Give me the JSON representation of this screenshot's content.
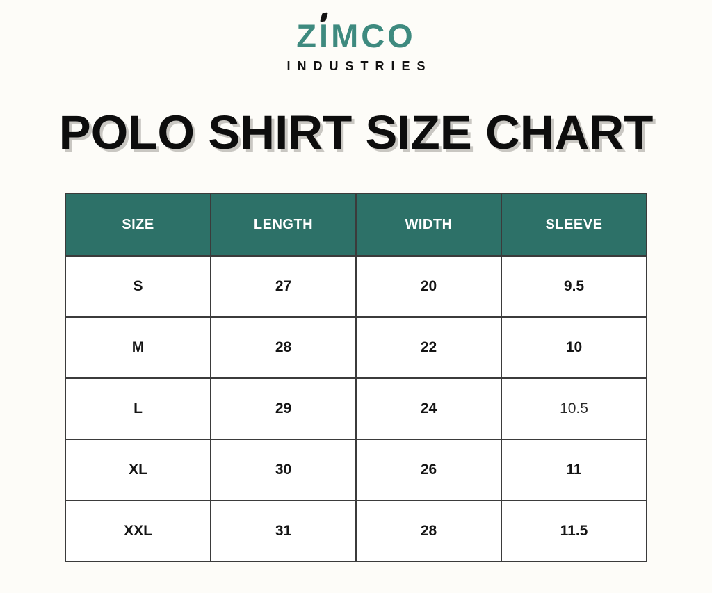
{
  "brand": {
    "name_z": "Z",
    "name_i": "I",
    "name_rest": "MCO",
    "subtext": "INDUSTRIES"
  },
  "page": {
    "title": "POLO SHIRT SIZE CHART"
  },
  "colors": {
    "header_teal": "#2d7168",
    "logo_teal": "#3e8a7f",
    "background": "#fdfcf8",
    "border": "#3b3b3b",
    "header_text": "#ffffff",
    "body_text": "#151515"
  },
  "chart_data": {
    "type": "table",
    "title": "POLO SHIRT SIZE CHART",
    "columns": [
      "SIZE",
      "LENGTH",
      "WIDTH",
      "SLEEVE"
    ],
    "rows": [
      [
        "S",
        "27",
        "20",
        "9.5"
      ],
      [
        "M",
        "28",
        "22",
        "10"
      ],
      [
        "L",
        "29",
        "24",
        "10.5"
      ],
      [
        "XL",
        "30",
        "26",
        "11"
      ],
      [
        "XXL",
        "31",
        "28",
        "11.5"
      ]
    ]
  }
}
